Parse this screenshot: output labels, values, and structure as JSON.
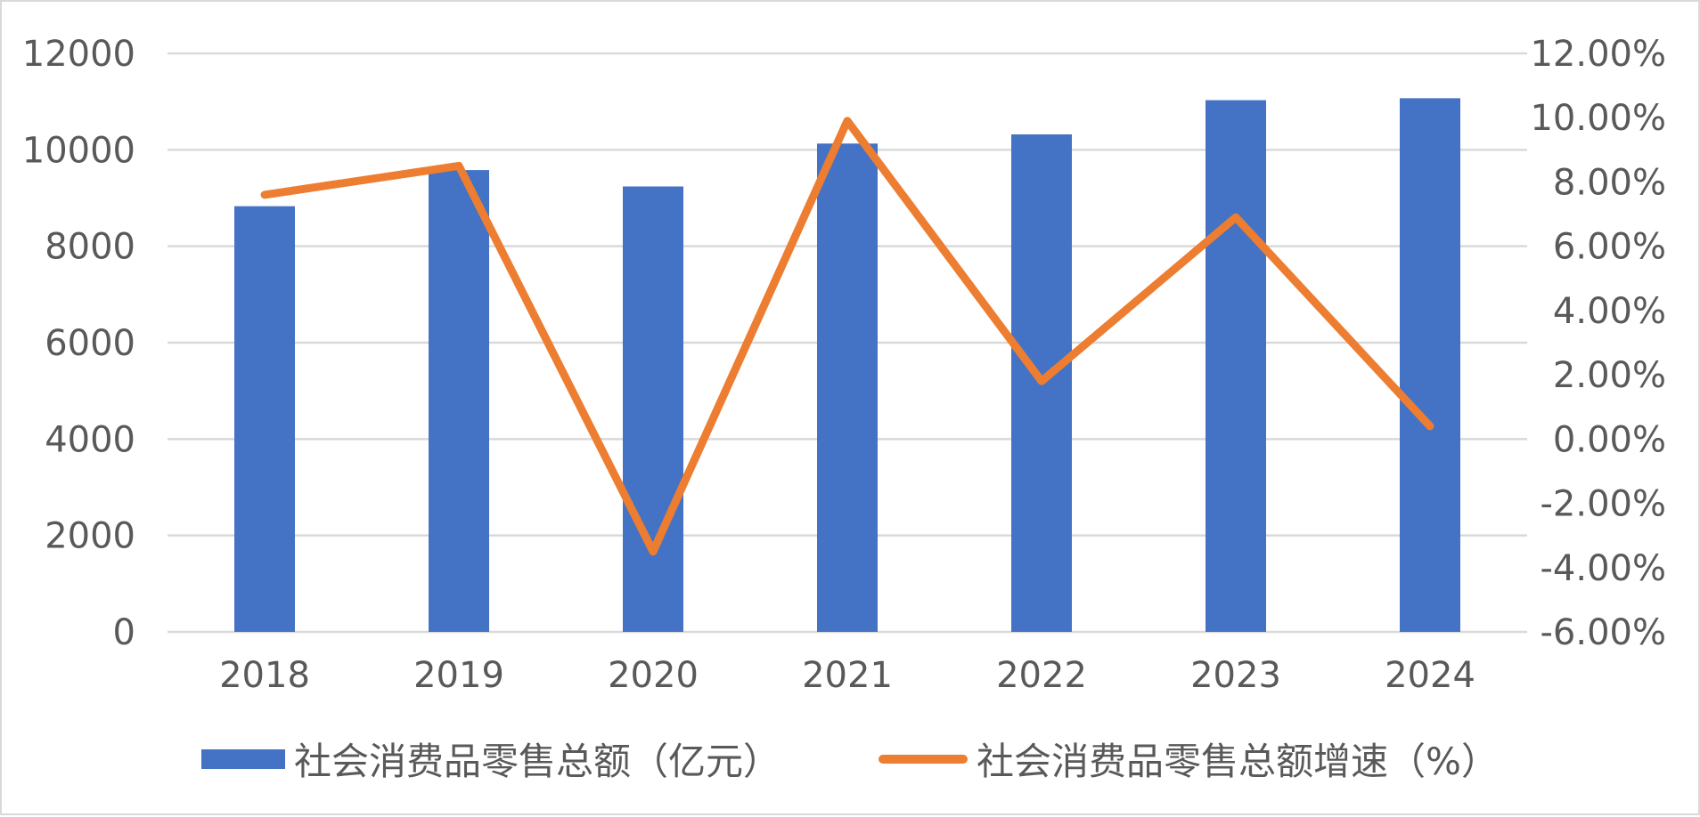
{
  "chart_data": {
    "type": "bar",
    "categories": [
      "2018",
      "2019",
      "2020",
      "2021",
      "2022",
      "2023",
      "2024"
    ],
    "series": [
      {
        "name": "社会消费品零售总额（亿元）",
        "type": "bar",
        "axis": "left",
        "values": [
          8830,
          9580,
          9240,
          10130,
          10320,
          11030,
          11070
        ],
        "color": "#4472C4"
      },
      {
        "name": "社会消费品零售总额增速（%）",
        "type": "line",
        "axis": "right",
        "values": [
          7.6,
          8.5,
          -3.5,
          9.9,
          1.8,
          6.9,
          0.4
        ],
        "color": "#ED7D31"
      }
    ],
    "y_left": {
      "ylim": [
        0,
        12000
      ],
      "ticks": [
        "0",
        "2000",
        "4000",
        "6000",
        "8000",
        "10000",
        "12000"
      ]
    },
    "y_right": {
      "ylim": [
        -6,
        12
      ],
      "ticks": [
        "-6.00%",
        "-4.00%",
        "-2.00%",
        "0.00%",
        "2.00%",
        "4.00%",
        "6.00%",
        "8.00%",
        "10.00%",
        "12.00%"
      ]
    },
    "grid": true,
    "legend_position": "bottom"
  }
}
